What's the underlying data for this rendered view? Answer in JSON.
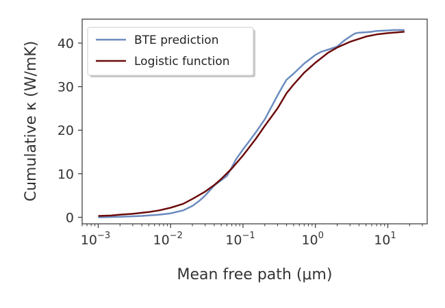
{
  "chart_data": {
    "type": "line",
    "xscale": "log",
    "xlim": [
      0.0006,
      35
    ],
    "ylim": [
      -1.5,
      45.5
    ],
    "xlabel": "Mean free path (μm)",
    "ylabel": "Cumulative κ (W/mK)",
    "grid": false,
    "legend_position": "top-left",
    "x_ticks": [
      {
        "base": "10",
        "exp": "−3",
        "value": 0.001
      },
      {
        "base": "10",
        "exp": "−2",
        "value": 0.01
      },
      {
        "base": "10",
        "exp": "−1",
        "value": 0.1
      },
      {
        "base": "10",
        "exp": "0",
        "value": 1
      },
      {
        "base": "10",
        "exp": "1",
        "value": 10
      }
    ],
    "y_ticks": [
      0,
      10,
      20,
      30,
      40
    ],
    "series": [
      {
        "name": "BTE prediction",
        "color": "#6a8bbf",
        "x": [
          0.001,
          0.002,
          0.004,
          0.007,
          0.01,
          0.015,
          0.02,
          0.025,
          0.03,
          0.04,
          0.05,
          0.06,
          0.07,
          0.08,
          0.1,
          0.12,
          0.15,
          0.2,
          0.25,
          0.3,
          0.35,
          0.4,
          0.5,
          0.7,
          1.0,
          1.2,
          1.5,
          2.0,
          2.5,
          3.0,
          3.5,
          4.0,
          5.0,
          6.0,
          7.0,
          10.0,
          12.0,
          17.0
        ],
        "y": [
          0.0,
          0.1,
          0.3,
          0.6,
          0.9,
          1.6,
          2.6,
          3.8,
          5.0,
          7.3,
          8.5,
          9.5,
          11.5,
          13.3,
          15.6,
          17.3,
          19.5,
          22.5,
          25.5,
          28.0,
          30.0,
          31.6,
          33.0,
          35.3,
          37.3,
          38.0,
          38.5,
          39.2,
          40.6,
          41.5,
          42.2,
          42.4,
          42.5,
          42.6,
          42.8,
          42.9,
          43.0,
          43.0
        ]
      },
      {
        "name": "Logistic function",
        "color": "#6b0a0a",
        "x": [
          0.001,
          0.0015,
          0.002,
          0.003,
          0.005,
          0.007,
          0.01,
          0.015,
          0.02,
          0.03,
          0.04,
          0.05,
          0.07,
          0.1,
          0.15,
          0.2,
          0.3,
          0.4,
          0.5,
          0.7,
          1.0,
          1.5,
          2.0,
          3.0,
          5.0,
          7.0,
          10.0,
          17.0
        ],
        "y": [
          0.3,
          0.4,
          0.6,
          0.8,
          1.2,
          1.6,
          2.2,
          3.1,
          4.2,
          5.9,
          7.4,
          8.8,
          11.2,
          14.2,
          18.0,
          21.0,
          25.0,
          28.5,
          30.5,
          33.2,
          35.5,
          37.8,
          39.0,
          40.3,
          41.5,
          42.0,
          42.3,
          42.6
        ]
      }
    ]
  }
}
